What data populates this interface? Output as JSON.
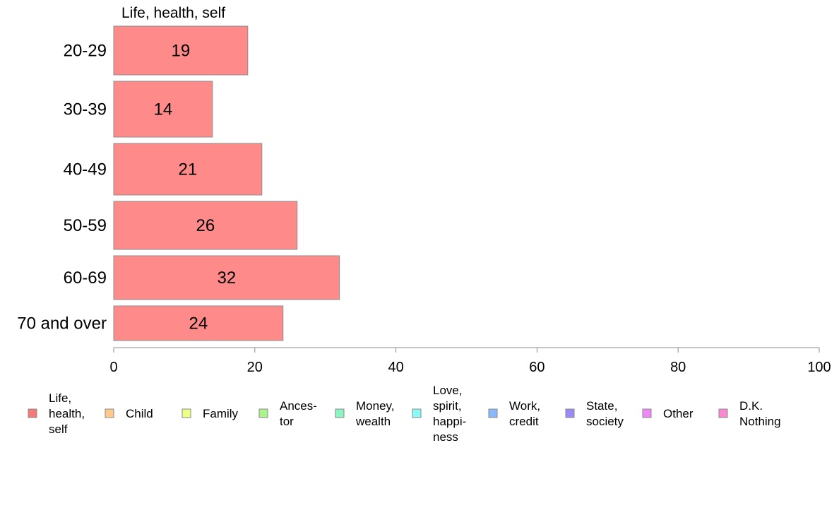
{
  "chart_data": {
    "type": "bar",
    "orientation": "horizontal",
    "series_header": "Life, health, self",
    "categories": [
      "20-29",
      "30-39",
      "40-49",
      "50-59",
      "60-69",
      "70 and over"
    ],
    "series": [
      {
        "name": "Life, health, self",
        "values": [
          19,
          14,
          21,
          26,
          32,
          24
        ],
        "color": "#ff8a8a"
      }
    ],
    "data_labels": [
      "19",
      "14",
      "21",
      "26",
      "32",
      "24"
    ],
    "xlim": [
      0,
      100
    ],
    "xticks": [
      "0",
      "20",
      "40",
      "60",
      "80",
      "100"
    ],
    "grid": false,
    "legend_position": "bottom",
    "legend": [
      {
        "lines": [
          "Life,",
          "health,",
          "self"
        ],
        "color": "#f47a7a"
      },
      {
        "lines": [
          "Child"
        ],
        "color": "#ffc98a"
      },
      {
        "lines": [
          "Family"
        ],
        "color": "#eeff88"
      },
      {
        "lines": [
          "Ances-",
          "tor"
        ],
        "color": "#aaf58a"
      },
      {
        "lines": [
          "Money,",
          "wealth"
        ],
        "color": "#8af5c0"
      },
      {
        "lines": [
          "Love,",
          "spirit,",
          "happi-",
          "ness"
        ],
        "color": "#8afaf5"
      },
      {
        "lines": [
          "Work,",
          "credit"
        ],
        "color": "#8ab8fa"
      },
      {
        "lines": [
          "State,",
          "society"
        ],
        "color": "#9a8af5"
      },
      {
        "lines": [
          "Other"
        ],
        "color": "#ee88f5"
      },
      {
        "lines": [
          "D.K.",
          "Nothing"
        ],
        "color": "#fa8ad0"
      }
    ]
  }
}
